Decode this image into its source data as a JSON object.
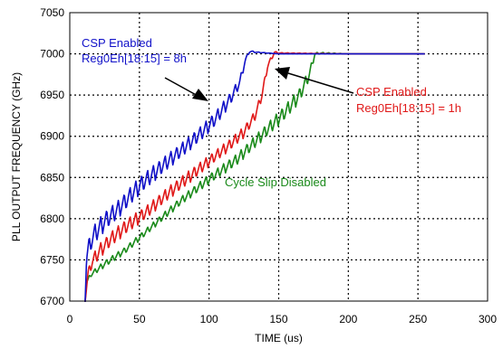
{
  "chart_data": {
    "type": "line",
    "xlabel": "TIME (us)",
    "ylabel": "PLL OUTPUT FREQUENCY (GHz)",
    "xlim": [
      0,
      300
    ],
    "ylim": [
      6700,
      7050
    ],
    "xticks": [
      0,
      50,
      100,
      150,
      200,
      250,
      300
    ],
    "yticks": [
      6700,
      6750,
      6800,
      6850,
      6900,
      6950,
      7000,
      7050
    ],
    "grid": true,
    "series": [
      {
        "name": "CSP Enabled Reg0Eh[18:15] = 8h",
        "color": "#1010c8",
        "x": [
          11,
          12,
          14,
          18,
          25,
          35,
          50,
          65,
          80,
          95,
          105,
          115,
          122,
          126,
          129,
          134,
          150,
          200,
          255
        ],
        "y": [
          6700,
          6752,
          6768,
          6782,
          6797,
          6812,
          6840,
          6862,
          6883,
          6905,
          6922,
          6945,
          6965,
          6992,
          7003,
          7002,
          7000,
          7000,
          7000
        ],
        "oscillation": [
          2,
          20,
          22,
          24,
          24,
          22,
          22,
          20,
          18,
          18,
          18,
          16,
          12,
          6,
          3,
          1,
          0,
          0,
          0
        ]
      },
      {
        "name": "CSP Enabled Reg0Eh[18:15] = 1h",
        "color": "#e01818",
        "x": [
          11,
          13,
          16,
          22,
          30,
          40,
          55,
          70,
          85,
          100,
          115,
          125,
          133,
          138,
          142,
          147,
          150,
          200,
          255
        ],
        "y": [
          6700,
          6732,
          6748,
          6762,
          6776,
          6790,
          6808,
          6830,
          6850,
          6870,
          6890,
          6905,
          6925,
          6950,
          6985,
          7002,
          7001,
          7000,
          7000
        ],
        "oscillation": [
          2,
          12,
          16,
          18,
          18,
          18,
          16,
          16,
          16,
          14,
          14,
          14,
          12,
          10,
          8,
          3,
          1,
          0,
          0
        ]
      },
      {
        "name": "Cycle Slip Disabled",
        "color": "#1a8a1a",
        "x": [
          11,
          12,
          15,
          25,
          40,
          60,
          80,
          100,
          120,
          140,
          155,
          165,
          172,
          176,
          180,
          200,
          255
        ],
        "y": [
          6700,
          6722,
          6732,
          6745,
          6762,
          6792,
          6822,
          6848,
          6872,
          6905,
          6930,
          6950,
          6975,
          7000,
          7001,
          7000,
          7000
        ],
        "oscillation": [
          2,
          4,
          6,
          8,
          8,
          8,
          10,
          12,
          14,
          16,
          18,
          18,
          14,
          4,
          2,
          0,
          0
        ]
      }
    ],
    "annotations": [
      {
        "lines": [
          "CSP Enabled",
          "Reg0Eh[18:15] = 8h"
        ],
        "color": "#1010c8"
      },
      {
        "lines": [
          "CSP Enabled",
          "Reg0Eh[18:15] = 1h"
        ],
        "color": "#e01818"
      },
      {
        "lines": [
          "Cycle Slip Disabled"
        ],
        "color": "#1a8a1a"
      }
    ]
  }
}
